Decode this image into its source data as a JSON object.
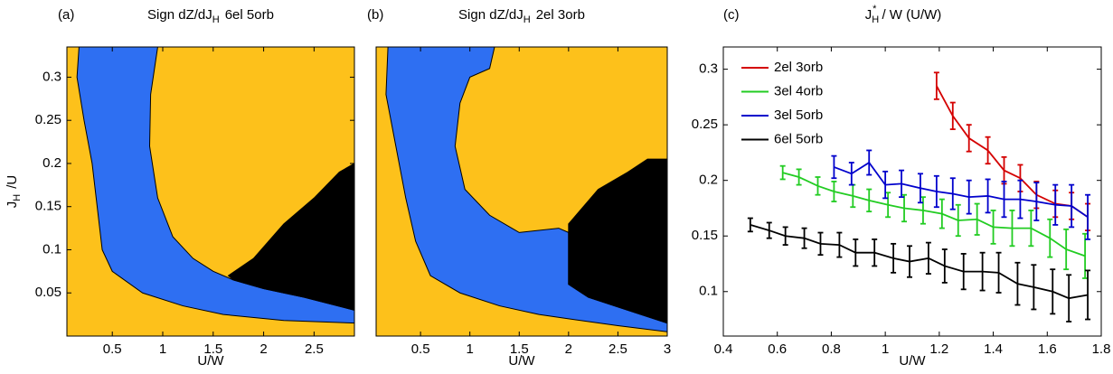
{
  "chart_data": [
    {
      "type": "region-map",
      "panel": "(a)",
      "title": {
        "text": "Sign dZ/dJ",
        "sub": "H",
        "rest": "6el  5orb"
      },
      "xlabel": "U/W",
      "ylabel": {
        "text": "J",
        "sub": "H",
        "rest": "/U"
      },
      "background": "#fdc11b",
      "xlim": [
        0.05,
        2.9
      ],
      "ylim": [
        0,
        0.335
      ],
      "xticks": [
        0.5,
        1,
        1.5,
        2,
        2.5
      ],
      "yticks": [
        0.05,
        0.1,
        0.15,
        0.2,
        0.25,
        0.3
      ],
      "regions": [
        {
          "color": "#2e6ff2",
          "x": [
            0.17,
            0.15,
            0.22,
            0.3,
            0.35,
            0.4,
            0.5,
            0.8,
            1.2,
            1.6,
            2.2,
            2.9,
            2.9,
            2.4,
            2.0,
            1.7,
            1.5,
            1.3,
            1.1,
            0.95,
            0.87,
            0.88,
            0.95
          ],
          "y": [
            0.335,
            0.3,
            0.25,
            0.2,
            0.15,
            0.1,
            0.075,
            0.05,
            0.035,
            0.025,
            0.018,
            0.015,
            0.03,
            0.045,
            0.055,
            0.065,
            0.075,
            0.09,
            0.115,
            0.16,
            0.22,
            0.28,
            0.335
          ]
        },
        {
          "color": "#000000",
          "x": [
            1.65,
            1.9,
            2.2,
            2.5,
            2.75,
            2.9,
            2.9,
            2.4,
            2.0,
            1.7
          ],
          "y": [
            0.07,
            0.09,
            0.13,
            0.16,
            0.19,
            0.2,
            0.03,
            0.045,
            0.055,
            0.065
          ]
        }
      ]
    },
    {
      "type": "region-map",
      "panel": "(b)",
      "title": {
        "text": "Sign dZ/dJ",
        "sub": "H",
        "rest": "2el 3orb"
      },
      "xlabel": "U/W",
      "background": "#fdc11b",
      "xlim": [
        0.05,
        3
      ],
      "ylim": [
        0,
        0.335
      ],
      "xticks": [
        0.5,
        1,
        1.5,
        2,
        2.5,
        3
      ],
      "regions": [
        {
          "color": "#2e6ff2",
          "x": [
            0.17,
            0.15,
            0.25,
            0.35,
            0.45,
            0.6,
            0.9,
            1.3,
            1.7,
            2.0,
            2.5,
            3,
            3,
            2.6,
            2.2,
            2.0,
            2.0,
            1.9,
            1.5,
            1.2,
            0.95,
            0.85,
            0.9,
            1.0,
            1.2,
            1.25
          ],
          "y": [
            0.335,
            0.28,
            0.22,
            0.16,
            0.11,
            0.07,
            0.05,
            0.035,
            0.025,
            0.02,
            0.012,
            0.005,
            0.015,
            0.03,
            0.045,
            0.06,
            0.12,
            0.125,
            0.12,
            0.14,
            0.17,
            0.22,
            0.27,
            0.3,
            0.31,
            0.335
          ]
        },
        {
          "color": "#000000",
          "x": [
            2.0,
            2.3,
            2.6,
            2.8,
            3,
            3,
            2.6,
            2.2,
            2.0
          ],
          "y": [
            0.13,
            0.17,
            0.19,
            0.205,
            0.205,
            0.015,
            0.03,
            0.045,
            0.06
          ]
        }
      ]
    },
    {
      "type": "line",
      "panel": "(c)",
      "title": {
        "text": "J",
        "sub": "H",
        "sup": "*",
        "rest": "/ W (U/W)"
      },
      "xlabel": "U/W",
      "legend": "upper left",
      "xlim": [
        0.4,
        1.8
      ],
      "ylim": [
        0.06,
        0.32
      ],
      "xticks": [
        0.4,
        0.6,
        0.8,
        1,
        1.2,
        1.4,
        1.6,
        1.8
      ],
      "yticks": [
        0.1,
        0.15,
        0.2,
        0.25,
        0.3
      ],
      "series": [
        {
          "name": "2el 3orb",
          "color": "#d40000",
          "x": [
            1.19,
            1.25,
            1.31,
            1.38,
            1.44,
            1.5,
            1.56,
            1.63,
            1.69,
            1.75
          ],
          "values": [
            0.285,
            0.258,
            0.238,
            0.227,
            0.209,
            0.202,
            0.187,
            0.179,
            0.177,
            0.167
          ],
          "errors": [
            0.012,
            0.012,
            0.012,
            0.012,
            0.012,
            0.012,
            0.012,
            0.012,
            0.012,
            0.012
          ]
        },
        {
          "name": "3el 4orb",
          "color": "#22cc22",
          "x": [
            0.62,
            0.68,
            0.75,
            0.81,
            0.88,
            0.94,
            1.01,
            1.07,
            1.14,
            1.21,
            1.27,
            1.34,
            1.4,
            1.47,
            1.54,
            1.61,
            1.67,
            1.74
          ],
          "values": [
            0.207,
            0.203,
            0.195,
            0.19,
            0.186,
            0.182,
            0.178,
            0.175,
            0.173,
            0.17,
            0.164,
            0.165,
            0.158,
            0.157,
            0.157,
            0.148,
            0.138,
            0.132
          ],
          "errors": [
            0.006,
            0.007,
            0.008,
            0.009,
            0.01,
            0.01,
            0.011,
            0.012,
            0.012,
            0.013,
            0.014,
            0.014,
            0.015,
            0.016,
            0.016,
            0.017,
            0.018,
            0.02
          ]
        },
        {
          "name": "3el 5orb",
          "color": "#0000cc",
          "x": [
            0.81,
            0.875,
            0.94,
            1.0,
            1.06,
            1.13,
            1.19,
            1.25,
            1.31,
            1.38,
            1.44,
            1.5,
            1.56,
            1.63,
            1.69,
            1.75
          ],
          "values": [
            0.212,
            0.206,
            0.216,
            0.196,
            0.197,
            0.193,
            0.19,
            0.188,
            0.185,
            0.186,
            0.183,
            0.183,
            0.181,
            0.178,
            0.177,
            0.167
          ],
          "errors": [
            0.01,
            0.01,
            0.011,
            0.012,
            0.012,
            0.013,
            0.014,
            0.014,
            0.015,
            0.015,
            0.016,
            0.017,
            0.017,
            0.018,
            0.019,
            0.02
          ]
        },
        {
          "name": "6el 5orb",
          "color": "#000000",
          "x": [
            0.5,
            0.57,
            0.63,
            0.7,
            0.76,
            0.83,
            0.89,
            0.96,
            1.03,
            1.09,
            1.16,
            1.22,
            1.29,
            1.36,
            1.42,
            1.49,
            1.55,
            1.62,
            1.68,
            1.75
          ],
          "values": [
            0.16,
            0.155,
            0.15,
            0.148,
            0.143,
            0.142,
            0.135,
            0.135,
            0.13,
            0.127,
            0.13,
            0.123,
            0.118,
            0.118,
            0.117,
            0.107,
            0.104,
            0.1,
            0.094,
            0.097
          ],
          "errors": [
            0.006,
            0.007,
            0.008,
            0.009,
            0.01,
            0.011,
            0.012,
            0.012,
            0.013,
            0.014,
            0.014,
            0.015,
            0.016,
            0.017,
            0.018,
            0.019,
            0.02,
            0.02,
            0.021,
            0.022
          ]
        }
      ]
    }
  ]
}
